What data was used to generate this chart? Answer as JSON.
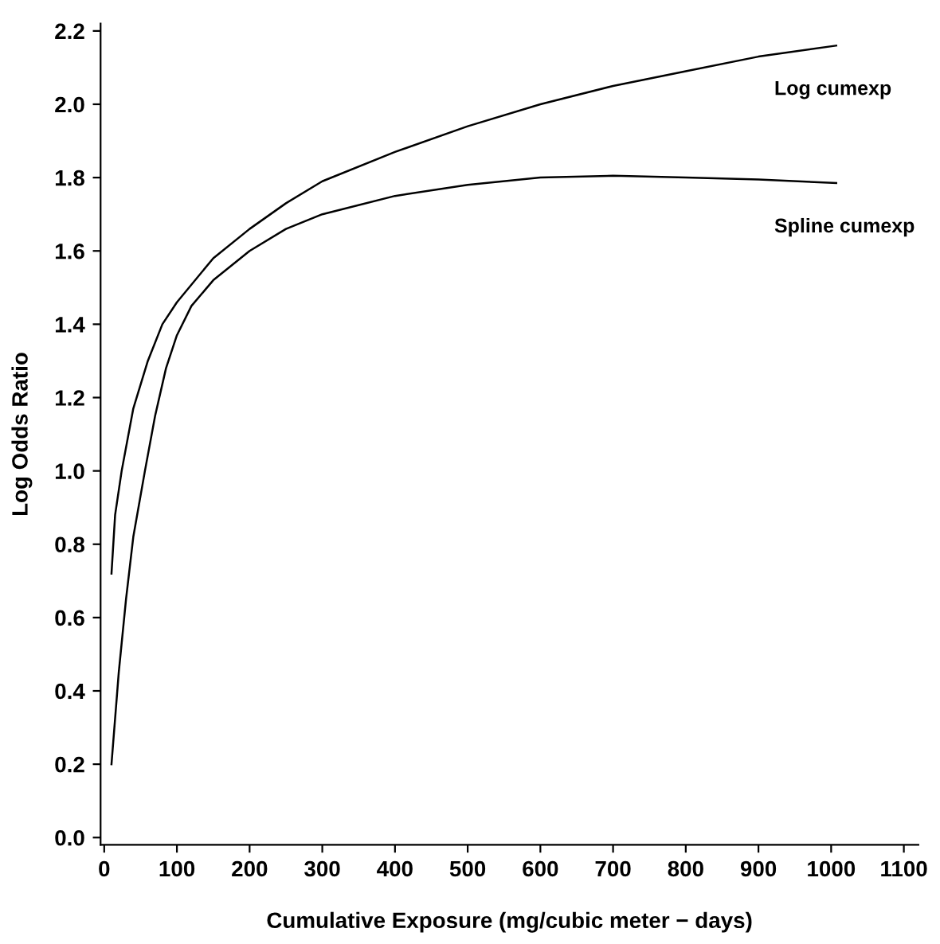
{
  "chart_data": {
    "type": "line",
    "xlabel": "Cumulative Exposure (mg/cubic meter − days)",
    "ylabel": "Log Odds Ratio",
    "xlim": [
      -5,
      1120
    ],
    "xticks": [
      0,
      100,
      200,
      300,
      400,
      500,
      600,
      700,
      800,
      900,
      1000,
      1100
    ],
    "ylim": [
      -0.02,
      2.22
    ],
    "yticks": [
      {
        "value": 0,
        "label": "0.0"
      },
      0.2,
      0.4,
      0.6,
      0.8,
      {
        "value": 1,
        "label": "1.0"
      },
      1.2,
      1.4,
      1.6,
      1.8,
      {
        "value": 2,
        "label": "2.0"
      },
      2.2
    ],
    "grid": false,
    "legend": false,
    "marker": "none",
    "line_style": "solid",
    "series": [
      {
        "name": "Log cumexp",
        "color": "#000000",
        "x": [
          10,
          15,
          24,
          40,
          60,
          80,
          100,
          150,
          200,
          250,
          300,
          400,
          500,
          600,
          700,
          800,
          900,
          1007
        ],
        "values": [
          0.72,
          0.88,
          1.0,
          1.17,
          1.3,
          1.4,
          1.46,
          1.58,
          1.66,
          1.73,
          1.79,
          1.87,
          1.94,
          2.0,
          2.05,
          2.09,
          2.13,
          2.16
        ]
      },
      {
        "name": "Spline cumexp",
        "color": "#000000",
        "x": [
          10,
          20,
          30,
          40,
          56,
          70,
          85,
          100,
          120,
          150,
          200,
          250,
          300,
          400,
          500,
          600,
          700,
          800,
          900,
          1007
        ],
        "values": [
          0.2,
          0.45,
          0.65,
          0.82,
          1.0,
          1.15,
          1.28,
          1.37,
          1.45,
          1.52,
          1.6,
          1.66,
          1.7,
          1.75,
          1.78,
          1.8,
          1.805,
          1.8,
          1.795,
          1.785
        ]
      }
    ]
  }
}
